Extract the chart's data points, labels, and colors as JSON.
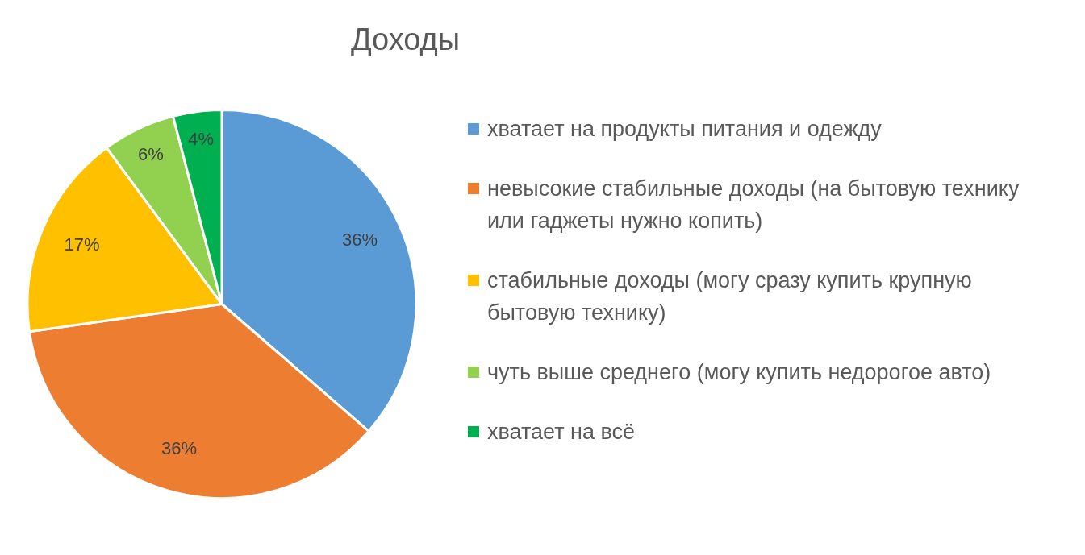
{
  "chart_data": {
    "type": "pie",
    "title": "Доходы",
    "categories": [
      "хватает на продукты питания и одежду",
      "невысокие стабильные доходы (на бытовую технику или гаджеты нужно копить)",
      "стабильные доходы (могу сразу купить крупную бытовую технику)",
      "чуть выше среднего (могу купить недорогое авто)",
      "хватает на всё"
    ],
    "values": [
      36,
      36,
      17,
      6,
      4
    ],
    "value_labels": [
      "36%",
      "36%",
      "17%",
      "6%",
      "4%"
    ],
    "colors": [
      "#5b9bd5",
      "#ed7d31",
      "#ffc000",
      "#92d050",
      "#00b050"
    ],
    "legend": "right"
  }
}
